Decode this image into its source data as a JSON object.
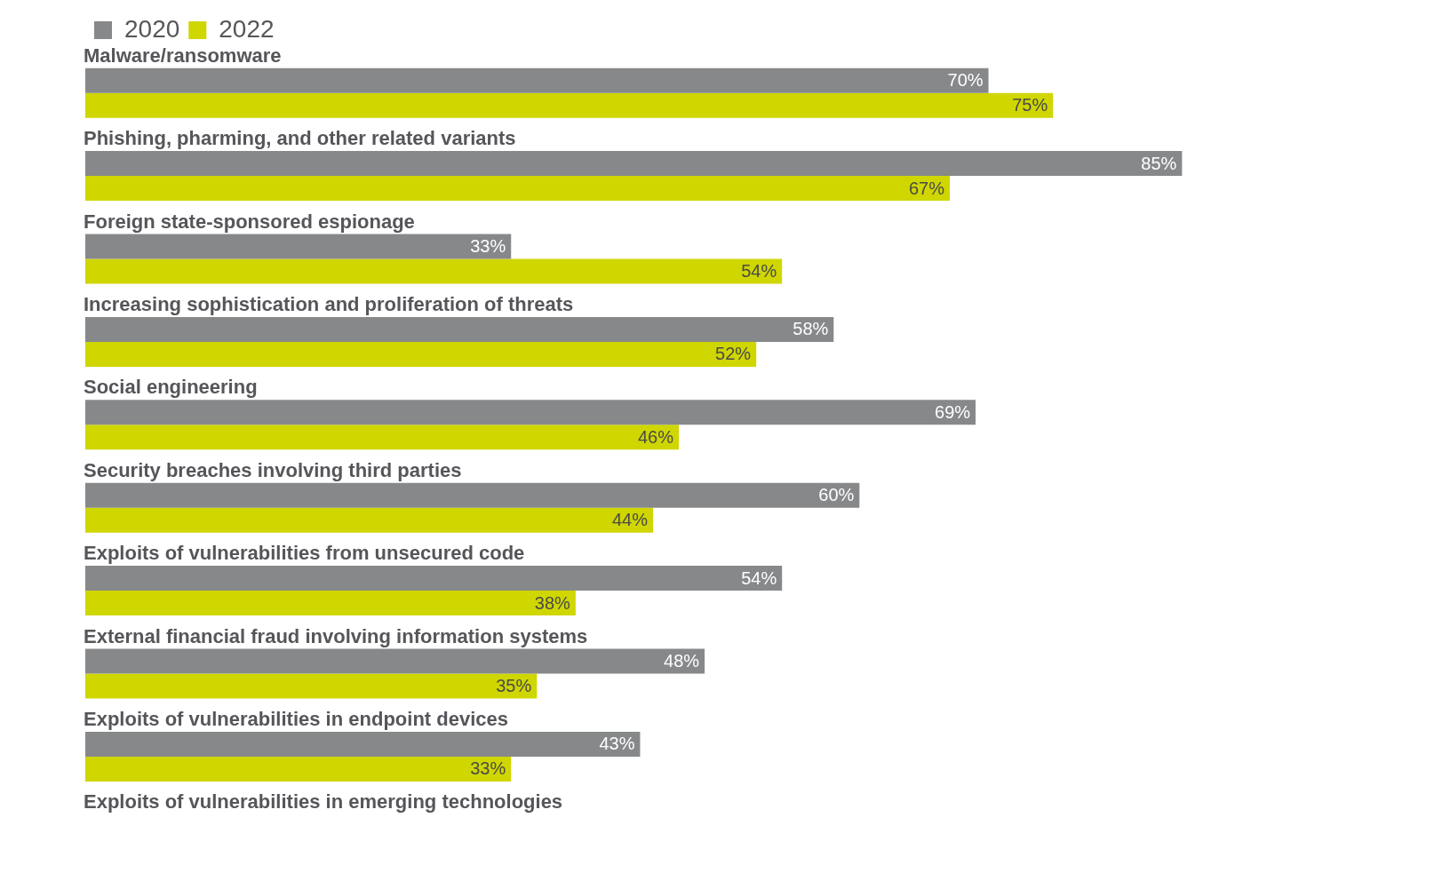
{
  "chart_data": {
    "type": "bar",
    "orientation": "horizontal",
    "categories": [
      "Malware/ransomware",
      "Phishing, pharming, and other related variants",
      "Foreign state-sponsored espionage",
      "Increasing sophistication and proliferation of threats",
      "Social engineering",
      "Security breaches involving third parties",
      "Exploits of vulnerabilities from unsecured code",
      "External financial fraud involving information systems",
      "Exploits of vulnerabilities in endpoint devices",
      "Exploits of vulnerabilities in emerging technologies"
    ],
    "series": [
      {
        "name": "2020",
        "color": "#87888a",
        "values": [
          70,
          85,
          33,
          58,
          69,
          60,
          54,
          48,
          43,
          null
        ],
        "value_labels": [
          "70%",
          "85%",
          "33%",
          "58%",
          "69%",
          "60%",
          "54%",
          "48%",
          "43%",
          null
        ]
      },
      {
        "name": "2022",
        "color": "#cfd600",
        "values": [
          75,
          67,
          54,
          52,
          46,
          44,
          38,
          35,
          33,
          null
        ],
        "value_labels": [
          "75%",
          "67%",
          "54%",
          "52%",
          "46%",
          "44%",
          "38%",
          "35%",
          "33%",
          null
        ]
      }
    ],
    "legend": "top left"
  }
}
